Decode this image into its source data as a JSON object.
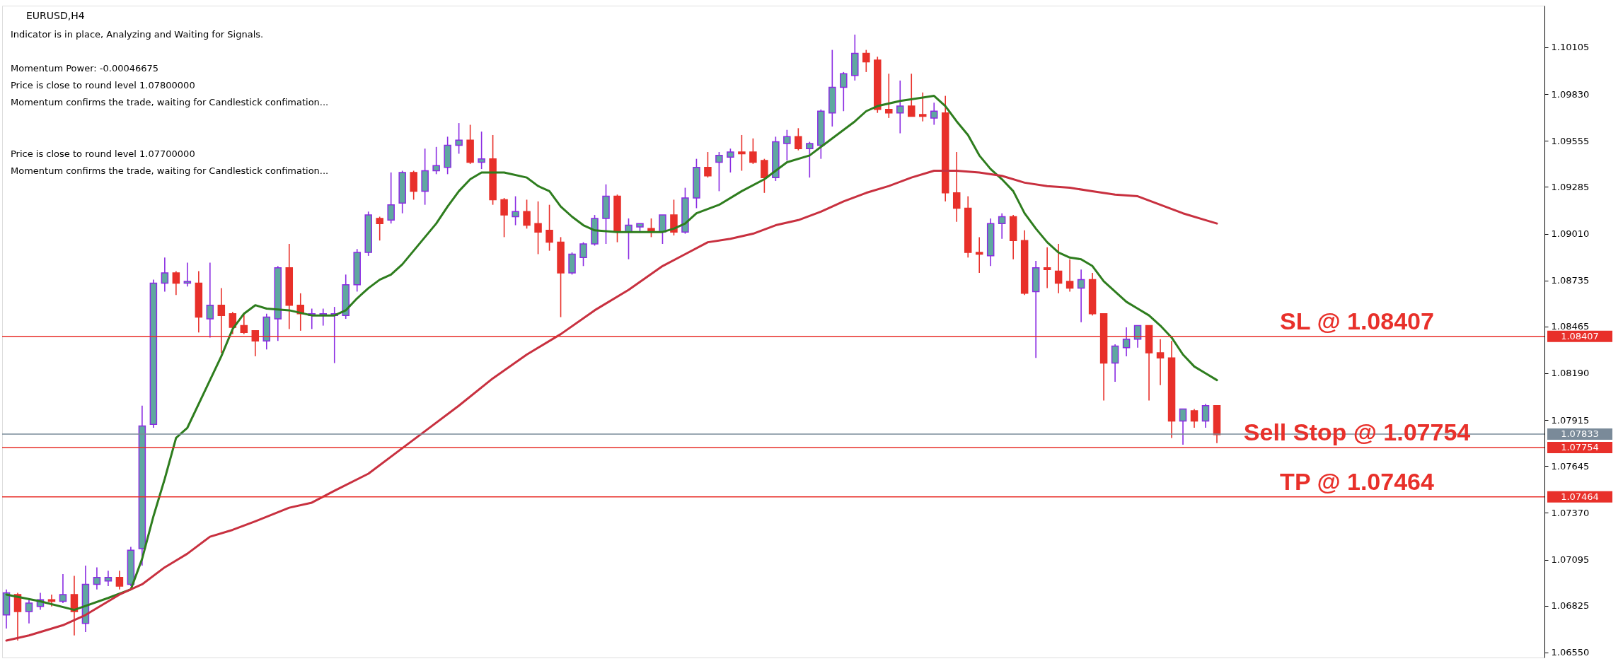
{
  "chart_data": {
    "type": "candlestick",
    "title": "EURUSD,H4",
    "annotations": [
      "Indicator is in place, Analyzing and Waiting for Signals.",
      "Momentum Power: -0.00046675",
      "Price is close to round level 1.07800000",
      "Momentum confirms the trade, waiting for Candlestick confimation...",
      "Price is close to round level 1.07700000",
      "Momentum confirms the trade, waiting for Candlestick confimation...",
      {
        "text": "SL @ 1.08407",
        "y": 1.08407
      },
      {
        "text": "Sell Stop @ 1.07754",
        "y": 1.07754
      },
      {
        "text": "TP @ 1.07464",
        "y": 1.07464
      }
    ],
    "categories": [
      null,
      null,
      null,
      null,
      null,
      null,
      null,
      null,
      null,
      null,
      null,
      null,
      null,
      null,
      null,
      null,
      null,
      null,
      null,
      null,
      null,
      null,
      null,
      null,
      null,
      null,
      null,
      null,
      null,
      null,
      null,
      null,
      null,
      null,
      null,
      null,
      null,
      null,
      null,
      null,
      null,
      null,
      null,
      null,
      null,
      null,
      null,
      null,
      null,
      null,
      null,
      null,
      null,
      null,
      null,
      null,
      null,
      null,
      null,
      null,
      null,
      null,
      null,
      null,
      null,
      null,
      null,
      null,
      null,
      null,
      null,
      null,
      null,
      null,
      null,
      null,
      null,
      null,
      null,
      null,
      null,
      null,
      null,
      null,
      null,
      null,
      null,
      null,
      null,
      null,
      null,
      null,
      null,
      null,
      null,
      null,
      null,
      null,
      null,
      null,
      null,
      null,
      null,
      null,
      null,
      null,
      null,
      null
    ],
    "colors": [
      "#5fa8a0",
      "#e8302a",
      "#5fa8a0",
      "#5fa8a0",
      "#e8302a",
      "#5fa8a0",
      "#e8302a",
      "#5fa8a0",
      "#5fa8a0",
      "#5fa8a0",
      "#e8302a",
      "#5fa8a0",
      "#5fa8a0",
      "#5fa8a0",
      "#5fa8a0",
      "#e8302a",
      "#5fa8a0",
      "#e8302a",
      "#5fa8a0",
      "#e8302a",
      "#e8302a",
      "#e8302a",
      "#e8302a",
      "#5fa8a0",
      "#5fa8a0",
      "#e8302a",
      "#e8302a",
      "#5fa8a0",
      "#5fa8a0",
      "#5fa8a0",
      "#5fa8a0",
      "#5fa8a0",
      "#5fa8a0",
      "#e8302a",
      "#5fa8a0",
      "#5fa8a0",
      "#e8302a",
      "#5fa8a0",
      "#5fa8a0",
      "#5fa8a0",
      "#5fa8a0",
      "#e8302a",
      "#5fa8a0",
      "#e8302a",
      "#e8302a",
      "#5fa8a0",
      "#e8302a",
      "#e8302a",
      "#e8302a",
      "#e8302a",
      "#5fa8a0",
      "#5fa8a0",
      "#5fa8a0",
      "#5fa8a0",
      "#e8302a",
      "#5fa8a0",
      "#5fa8a0",
      "#e8302a",
      "#5fa8a0",
      "#e8302a",
      "#5fa8a0",
      "#5fa8a0",
      "#e8302a",
      "#5fa8a0",
      "#5fa8a0",
      "#e8302a",
      "#e8302a",
      "#e8302a",
      "#5fa8a0",
      "#5fa8a0",
      "#e8302a",
      "#5fa8a0",
      "#5fa8a0",
      "#5fa8a0",
      "#5fa8a0",
      "#5fa8a0",
      "#e8302a",
      "#e8302a",
      "#e8302a",
      "#5fa8a0",
      "#e8302a",
      "#e8302a",
      "#5fa8a0",
      "#e8302a",
      "#e8302a",
      "#e8302a",
      "#e8302a",
      "#5fa8a0",
      "#5fa8a0",
      "#e8302a",
      "#e8302a",
      "#5fa8a0",
      "#e8302a",
      "#e8302a",
      "#e8302a",
      "#5fa8a0",
      "#e8302a",
      "#e8302a",
      "#5fa8a0",
      "#5fa8a0",
      "#5fa8a0",
      "#e8302a",
      "#e8302a",
      "#e8302a",
      "#5fa8a0",
      "#e8302a",
      "#5fa8a0",
      "#e8302a"
    ],
    "ohlc": [
      [
        1.0677,
        1.0692,
        1.0669,
        1.069
      ],
      [
        1.0689,
        1.069,
        1.0662,
        1.0679
      ],
      [
        1.0679,
        1.0686,
        1.0672,
        1.0684
      ],
      [
        1.0682,
        1.069,
        1.068,
        1.0686
      ],
      [
        1.0686,
        1.0689,
        1.0682,
        1.0685
      ],
      [
        1.0685,
        1.0701,
        1.0684,
        1.0689
      ],
      [
        1.0689,
        1.07,
        1.0665,
        1.0679
      ],
      [
        1.0672,
        1.0706,
        1.0667,
        1.0695
      ],
      [
        1.0695,
        1.0705,
        1.0692,
        1.0699
      ],
      [
        1.0697,
        1.0703,
        1.0694,
        1.0699
      ],
      [
        1.0699,
        1.0703,
        1.0692,
        1.0694
      ],
      [
        1.0695,
        1.0717,
        1.0694,
        1.0715
      ],
      [
        1.0716,
        1.08,
        1.0706,
        1.0788
      ],
      [
        1.0789,
        1.0874,
        1.0787,
        1.0872
      ],
      [
        1.0872,
        1.0887,
        1.0867,
        1.0878
      ],
      [
        1.0878,
        1.0879,
        1.0865,
        1.0872
      ],
      [
        1.0872,
        1.0884,
        1.087,
        1.0873
      ],
      [
        1.0872,
        1.0879,
        1.0843,
        1.0852
      ],
      [
        1.0851,
        1.0884,
        1.084,
        1.0859
      ],
      [
        1.0859,
        1.0869,
        1.0831,
        1.0853
      ],
      [
        1.0854,
        1.0855,
        1.0842,
        1.0846
      ],
      [
        1.0847,
        1.0854,
        1.0842,
        1.0843
      ],
      [
        1.0844,
        1.0844,
        1.0829,
        1.0838
      ],
      [
        1.0838,
        1.0854,
        1.0833,
        1.0852
      ],
      [
        1.0851,
        1.0882,
        1.0838,
        1.0881
      ],
      [
        1.0881,
        1.0895,
        1.0845,
        1.0859
      ],
      [
        1.0859,
        1.0866,
        1.0844,
        1.0854
      ],
      [
        1.0853,
        1.0857,
        1.0845,
        1.0854
      ],
      [
        1.0853,
        1.0857,
        1.0847,
        1.0854
      ],
      [
        1.0853,
        1.0858,
        1.0825,
        1.0854
      ],
      [
        1.0853,
        1.0877,
        1.0851,
        1.0871
      ],
      [
        1.0871,
        1.0892,
        1.0867,
        1.089
      ],
      [
        1.089,
        1.0914,
        1.0888,
        1.0912
      ],
      [
        1.091,
        1.0911,
        1.0897,
        1.0907
      ],
      [
        1.0909,
        1.0937,
        1.0907,
        1.0918
      ],
      [
        1.0919,
        1.0938,
        1.0913,
        1.0937
      ],
      [
        1.0937,
        1.0938,
        1.0921,
        1.0926
      ],
      [
        1.0926,
        1.0951,
        1.0918,
        1.0938
      ],
      [
        1.0938,
        1.0952,
        1.0936,
        1.0941
      ],
      [
        1.094,
        1.0958,
        1.0936,
        1.0953
      ],
      [
        1.0953,
        1.0966,
        1.0948,
        1.0956
      ],
      [
        1.0956,
        1.0965,
        1.0942,
        1.0943
      ],
      [
        1.0943,
        1.0961,
        1.0939,
        1.0945
      ],
      [
        1.0945,
        1.0959,
        1.0918,
        1.0921
      ],
      [
        1.0921,
        1.0922,
        1.0899,
        1.0912
      ],
      [
        1.0911,
        1.0923,
        1.0906,
        1.0914
      ],
      [
        1.0914,
        1.0921,
        1.0904,
        1.0906
      ],
      [
        1.0907,
        1.092,
        1.0889,
        1.0902
      ],
      [
        1.0903,
        1.0918,
        1.0891,
        1.0896
      ],
      [
        1.0896,
        1.0899,
        1.0852,
        1.0878
      ],
      [
        1.0878,
        1.089,
        1.0877,
        1.0889
      ],
      [
        1.0887,
        1.0896,
        1.0882,
        1.0895
      ],
      [
        1.0895,
        1.0912,
        1.0894,
        1.091
      ],
      [
        1.091,
        1.093,
        1.0895,
        1.0923
      ],
      [
        1.0923,
        1.0924,
        1.0896,
        1.0902
      ],
      [
        1.0902,
        1.091,
        1.0886,
        1.0906
      ],
      [
        1.0905,
        1.0907,
        1.0902,
        1.0907
      ],
      [
        1.0904,
        1.091,
        1.0899,
        1.0902
      ],
      [
        1.0902,
        1.0912,
        1.0895,
        1.0912
      ],
      [
        1.0912,
        1.0921,
        1.09,
        1.0902
      ],
      [
        1.0902,
        1.0928,
        1.0901,
        1.0922
      ],
      [
        1.0922,
        1.0945,
        1.0916,
        1.094
      ],
      [
        1.094,
        1.0949,
        1.0934,
        1.0935
      ],
      [
        1.0943,
        1.0949,
        1.0926,
        1.0947
      ],
      [
        1.0946,
        1.0951,
        1.0937,
        1.0949
      ],
      [
        1.0949,
        1.0959,
        1.0938,
        1.0948
      ],
      [
        1.0949,
        1.0957,
        1.0942,
        1.0943
      ],
      [
        1.0944,
        1.0945,
        1.0925,
        1.0934
      ],
      [
        1.0934,
        1.0958,
        1.0932,
        1.0955
      ],
      [
        1.0954,
        1.0962,
        1.0944,
        1.0958
      ],
      [
        1.0958,
        1.0963,
        1.095,
        1.0951
      ],
      [
        1.0951,
        1.0955,
        1.0934,
        1.0954
      ],
      [
        1.0953,
        1.0974,
        1.0945,
        1.0973
      ],
      [
        1.0972,
        1.1009,
        1.0964,
        1.0987
      ],
      [
        1.0987,
        1.0996,
        1.0973,
        1.0995
      ],
      [
        1.0994,
        1.1018,
        1.0991,
        1.1007
      ],
      [
        1.1007,
        1.1009,
        1.0996,
        1.1002
      ],
      [
        1.1003,
        1.1005,
        1.0972,
        1.0974
      ],
      [
        1.0974,
        1.0995,
        1.0969,
        1.0972
      ],
      [
        1.0972,
        1.0991,
        1.096,
        1.0976
      ],
      [
        1.0976,
        1.0995,
        1.097,
        1.097
      ],
      [
        1.0971,
        1.0984,
        1.0967,
        1.097
      ],
      [
        1.0969,
        1.0978,
        1.0965,
        1.0973
      ],
      [
        1.0972,
        1.0982,
        1.092,
        1.0925
      ],
      [
        1.0925,
        1.0949,
        1.0908,
        1.0916
      ],
      [
        1.0916,
        1.0923,
        1.0887,
        1.089
      ],
      [
        1.089,
        1.0899,
        1.0878,
        1.0889
      ],
      [
        1.0888,
        1.091,
        1.0882,
        1.0907
      ],
      [
        1.0907,
        1.0913,
        1.0898,
        1.0911
      ],
      [
        1.0911,
        1.0912,
        1.0886,
        1.0897
      ],
      [
        1.0897,
        1.0903,
        1.0865,
        1.0866
      ],
      [
        1.0867,
        1.0885,
        1.0828,
        1.0881
      ],
      [
        1.0881,
        1.0893,
        1.0869,
        1.088
      ],
      [
        1.0879,
        1.0895,
        1.0866,
        1.0872
      ],
      [
        1.0873,
        1.0886,
        1.0867,
        1.0869
      ],
      [
        1.0869,
        1.088,
        1.0849,
        1.0874
      ],
      [
        1.0874,
        1.0878,
        1.0853,
        1.0854
      ],
      [
        1.0854,
        1.0854,
        1.0803,
        1.0825
      ],
      [
        1.0825,
        1.0836,
        1.0814,
        1.0835
      ],
      [
        1.0834,
        1.0846,
        1.0829,
        1.0839
      ],
      [
        1.0839,
        1.0847,
        1.0834,
        1.0847
      ],
      [
        1.0847,
        1.0847,
        1.0803,
        1.0831
      ],
      [
        1.0831,
        1.0839,
        1.0812,
        1.0828
      ],
      [
        1.0828,
        1.0838,
        1.0781,
        1.0791
      ],
      [
        1.0791,
        1.0798,
        1.0777,
        1.0798
      ],
      [
        1.0797,
        1.0798,
        1.0787,
        1.0791
      ],
      [
        1.0791,
        1.0801,
        1.0787,
        1.08
      ],
      [
        1.08,
        1.08,
        1.0778,
        1.0783
      ]
    ],
    "series": [
      {
        "type": "line",
        "color": "#2e7d1e",
        "values": [
          1.0689,
          null,
          null,
          1.0685,
          null,
          null,
          1.068,
          null,
          null,
          1.0687,
          null,
          1.0692,
          1.071,
          1.0735,
          1.0757,
          1.0781,
          1.0787,
          null,
          1.0815,
          1.0829,
          1.0845,
          1.0854,
          1.0859,
          1.0857,
          null,
          1.0856,
          null,
          1.0853,
          null,
          1.0853,
          1.0856,
          1.0863,
          1.0869,
          1.0874,
          1.0877,
          1.0883,
          1.0891,
          1.0899,
          1.0907,
          1.0917,
          1.0926,
          1.0933,
          1.0937,
          1.0937,
          1.0937,
          null,
          1.0934,
          1.0929,
          1.0926,
          1.0917,
          1.0911,
          1.0906,
          1.0903,
          null,
          1.0902,
          null,
          1.0902,
          null,
          1.0902,
          1.0904,
          1.0907,
          1.0913,
          null,
          1.0918,
          null,
          1.0926,
          null,
          1.0933,
          null,
          1.0943,
          null,
          1.0947,
          1.0952,
          1.0957,
          null,
          1.0967,
          1.0973,
          1.0976,
          null,
          1.0979,
          null,
          1.0981,
          1.0982,
          1.0976,
          1.0967,
          1.0959,
          1.0947,
          1.0939,
          1.0933,
          1.0926,
          1.0913,
          1.0904,
          1.0896,
          1.089,
          1.0887,
          1.0886,
          1.0882,
          1.0873,
          1.0867,
          1.0861,
          1.0857,
          1.0853,
          1.0847,
          1.084,
          1.083,
          1.0823,
          1.0819,
          1.0815
        ]
      },
      {
        "type": "line",
        "color": "#c8303f",
        "values": [
          1.0662,
          null,
          1.0665,
          null,
          null,
          1.0671,
          null,
          1.0677,
          null,
          null,
          1.0689,
          null,
          1.0695,
          null,
          1.0705,
          null,
          1.0713,
          null,
          1.0723,
          null,
          1.0727,
          null,
          1.0732,
          null,
          null,
          1.074,
          null,
          1.0743,
          null,
          1.075,
          null,
          null,
          1.076,
          null,
          null,
          1.0775,
          null,
          1.0785,
          null,
          null,
          1.08,
          null,
          null,
          1.0816,
          null,
          null,
          1.083,
          null,
          null,
          1.0842,
          null,
          null,
          1.0856,
          null,
          null,
          1.0868,
          null,
          null,
          1.0882,
          null,
          1.0889,
          null,
          1.0896,
          null,
          1.0898,
          null,
          1.0901,
          null,
          1.0906,
          null,
          1.0909,
          null,
          1.0914,
          null,
          1.092,
          null,
          1.0925,
          null,
          1.0929,
          null,
          1.0934,
          null,
          1.0938,
          null,
          1.0938,
          null,
          1.0937,
          null,
          1.0935,
          null,
          1.0931,
          null,
          1.0929,
          null,
          1.0928,
          null,
          1.0926,
          null,
          1.0924,
          null,
          1.0923,
          null,
          1.0918,
          null,
          1.0913,
          null,
          1.0909,
          1.0907
        ]
      }
    ],
    "ref_lines": [
      {
        "axis": "y",
        "value": 1.08407,
        "label": "1.08407",
        "color": "#e8302a"
      },
      {
        "axis": "y",
        "value": 1.07833,
        "label": "1.07833",
        "color": "#7a8a99"
      },
      {
        "axis": "y",
        "value": 1.07754,
        "label": "1.07754",
        "color": "#e8302a"
      },
      {
        "axis": "y",
        "value": 1.07464,
        "label": "1.07464",
        "color": "#e8302a"
      }
    ],
    "ylim": [
      1.0652,
      1.1035
    ],
    "yticks": [
      {
        "value": 1.10105,
        "label": "1.10105"
      },
      {
        "value": 1.0983,
        "label": "1.09830"
      },
      {
        "value": 1.09555,
        "label": "1.09555"
      },
      {
        "value": 1.09285,
        "label": "1.09285"
      },
      {
        "value": 1.0901,
        "label": "1.09010"
      },
      {
        "value": 1.08735,
        "label": "1.08735"
      },
      {
        "value": 1.08465,
        "label": "1.08465"
      },
      {
        "value": 1.0819,
        "label": "1.08190"
      },
      {
        "value": 1.07915,
        "label": "1.07915"
      },
      {
        "value": 1.07645,
        "label": "1.07645"
      },
      {
        "value": 1.0737,
        "label": "1.07370"
      },
      {
        "value": 1.07095,
        "label": "1.07095"
      },
      {
        "value": 1.06825,
        "label": "1.06825"
      },
      {
        "value": 1.0655,
        "label": "1.06550"
      }
    ],
    "tick_labels": "y"
  }
}
